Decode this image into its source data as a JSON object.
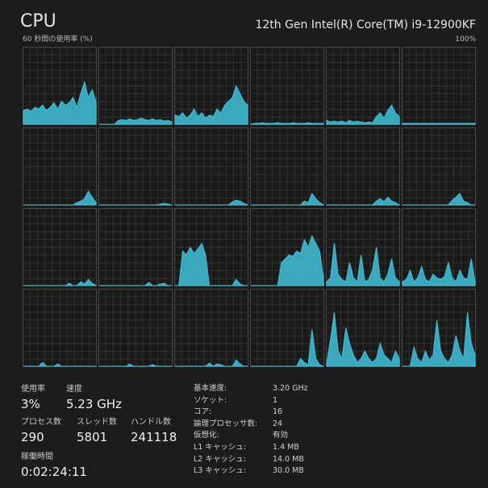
{
  "header": {
    "title": "CPU",
    "cpu_name": "12th Gen Intel(R) Core(TM) i9-12900KF",
    "graph_label": "60 秒間の使用率 (%)",
    "max_label": "100%"
  },
  "graphs": {
    "ylim": [
      0,
      100
    ],
    "color": "#3fc1d9",
    "cores": [
      {
        "values": [
          18,
          20,
          17,
          22,
          20,
          25,
          18,
          22,
          28,
          20,
          30,
          25,
          28,
          35,
          22,
          40,
          55,
          35,
          45,
          30
        ]
      },
      {
        "values": [
          0,
          0,
          0,
          0,
          0,
          5,
          6,
          5,
          7,
          5,
          6,
          8,
          6,
          5,
          7,
          5,
          6,
          4,
          5,
          3
        ]
      },
      {
        "values": [
          12,
          10,
          15,
          8,
          12,
          20,
          10,
          15,
          8,
          12,
          10,
          20,
          15,
          25,
          30,
          35,
          50,
          40,
          30,
          25
        ]
      },
      {
        "values": [
          0,
          1,
          1,
          2,
          1,
          1,
          1,
          2,
          1,
          1,
          1,
          2,
          1,
          1,
          1,
          2,
          1,
          1,
          1,
          1
        ]
      },
      {
        "values": [
          5,
          3,
          4,
          3,
          4,
          2,
          5,
          3,
          4,
          3,
          2,
          3,
          2,
          10,
          15,
          8,
          18,
          25,
          15,
          10
        ]
      },
      {
        "values": [
          1,
          1,
          1,
          1,
          1,
          1,
          1,
          1,
          1,
          1,
          1,
          1,
          1,
          1,
          1,
          1,
          1,
          1,
          1,
          1
        ]
      },
      {
        "values": [
          0,
          0,
          0,
          0,
          0,
          0,
          0,
          0,
          0,
          0,
          0,
          0,
          0,
          0,
          3,
          5,
          8,
          18,
          10,
          3
        ]
      },
      {
        "values": [
          0,
          0,
          0,
          0,
          0,
          0,
          0,
          0,
          0,
          0,
          0,
          0,
          0,
          0,
          0,
          0,
          1,
          2,
          1,
          0
        ]
      },
      {
        "values": [
          0,
          0,
          0,
          0,
          0,
          0,
          0,
          0,
          0,
          0,
          0,
          0,
          0,
          0,
          0,
          4,
          6,
          5,
          2,
          0
        ]
      },
      {
        "values": [
          0,
          0,
          0,
          0,
          0,
          0,
          0,
          0,
          0,
          0,
          0,
          0,
          0,
          0,
          5,
          3,
          15,
          8,
          3,
          0
        ]
      },
      {
        "values": [
          0,
          0,
          0,
          0,
          0,
          0,
          0,
          0,
          0,
          0,
          0,
          0,
          0,
          5,
          8,
          4,
          10,
          5,
          3,
          0
        ]
      },
      {
        "values": [
          0,
          0,
          0,
          0,
          0,
          0,
          0,
          0,
          0,
          0,
          0,
          0,
          0,
          6,
          10,
          15,
          5,
          3,
          0,
          0
        ]
      },
      {
        "values": [
          0,
          0,
          0,
          0,
          0,
          0,
          0,
          0,
          0,
          0,
          0,
          0,
          3,
          0,
          0,
          5,
          2,
          8,
          3,
          0
        ]
      },
      {
        "values": [
          0,
          0,
          0,
          0,
          0,
          0,
          0,
          0,
          0,
          0,
          0,
          0,
          0,
          4,
          0,
          0,
          2,
          3,
          0,
          0
        ]
      },
      {
        "values": [
          0,
          0,
          45,
          40,
          50,
          42,
          48,
          55,
          40,
          0,
          0,
          0,
          0,
          0,
          0,
          0,
          8,
          2,
          0,
          0
        ]
      },
      {
        "values": [
          0,
          0,
          0,
          0,
          0,
          0,
          0,
          0,
          30,
          35,
          40,
          38,
          45,
          42,
          60,
          50,
          65,
          55,
          45,
          10
        ]
      },
      {
        "values": [
          5,
          10,
          55,
          15,
          8,
          5,
          30,
          10,
          5,
          40,
          5,
          8,
          20,
          50,
          10,
          5,
          15,
          35,
          10,
          5
        ]
      },
      {
        "values": [
          5,
          8,
          20,
          5,
          10,
          25,
          8,
          5,
          15,
          10,
          8,
          12,
          30,
          10,
          5,
          20,
          10,
          8,
          35,
          5
        ]
      },
      {
        "values": [
          0,
          0,
          0,
          0,
          0,
          5,
          0,
          0,
          0,
          3,
          0,
          0,
          0,
          0,
          0,
          0,
          0,
          0,
          0,
          0
        ]
      },
      {
        "values": [
          0,
          0,
          0,
          0,
          0,
          0,
          0,
          0,
          3,
          0,
          0,
          0,
          0,
          0,
          2,
          0,
          0,
          0,
          0,
          0
        ]
      },
      {
        "values": [
          0,
          0,
          0,
          0,
          0,
          0,
          0,
          0,
          0,
          4,
          0,
          3,
          2,
          0,
          0,
          0,
          8,
          3,
          0,
          0
        ]
      },
      {
        "values": [
          0,
          0,
          0,
          0,
          0,
          0,
          0,
          0,
          0,
          0,
          0,
          0,
          0,
          10,
          5,
          2,
          48,
          10,
          2,
          0
        ]
      },
      {
        "values": [
          5,
          35,
          70,
          20,
          10,
          50,
          30,
          15,
          5,
          10,
          20,
          10,
          5,
          10,
          30,
          15,
          10,
          5,
          20,
          10
        ]
      },
      {
        "values": [
          0,
          0,
          0,
          25,
          10,
          5,
          20,
          8,
          15,
          60,
          20,
          10,
          5,
          15,
          40,
          20,
          10,
          70,
          30,
          15
        ]
      }
    ]
  },
  "stats": [
    {
      "label": "使用率",
      "value": "3%"
    },
    {
      "label": "速度",
      "value": "5.23 GHz"
    },
    {
      "label": "プロセス数",
      "value": "290"
    },
    {
      "label": "スレッド数",
      "value": "5801"
    },
    {
      "label": "ハンドル数",
      "value": "241118"
    },
    {
      "label": "稼働時間",
      "value": "0:02:24:11"
    }
  ],
  "specs": [
    {
      "label": "基本速度:",
      "value": "3.20 GHz"
    },
    {
      "label": "ソケット:",
      "value": "1"
    },
    {
      "label": "コア:",
      "value": "16"
    },
    {
      "label": "論理プロセッサ数:",
      "value": "24"
    },
    {
      "label": "仮想化:",
      "value": "有効"
    },
    {
      "label": "L1 キャッシュ:",
      "value": "1.4 MB"
    },
    {
      "label": "L2 キャッシュ:",
      "value": "14.0 MB"
    },
    {
      "label": "L3 キャッシュ:",
      "value": "30.0 MB"
    }
  ]
}
